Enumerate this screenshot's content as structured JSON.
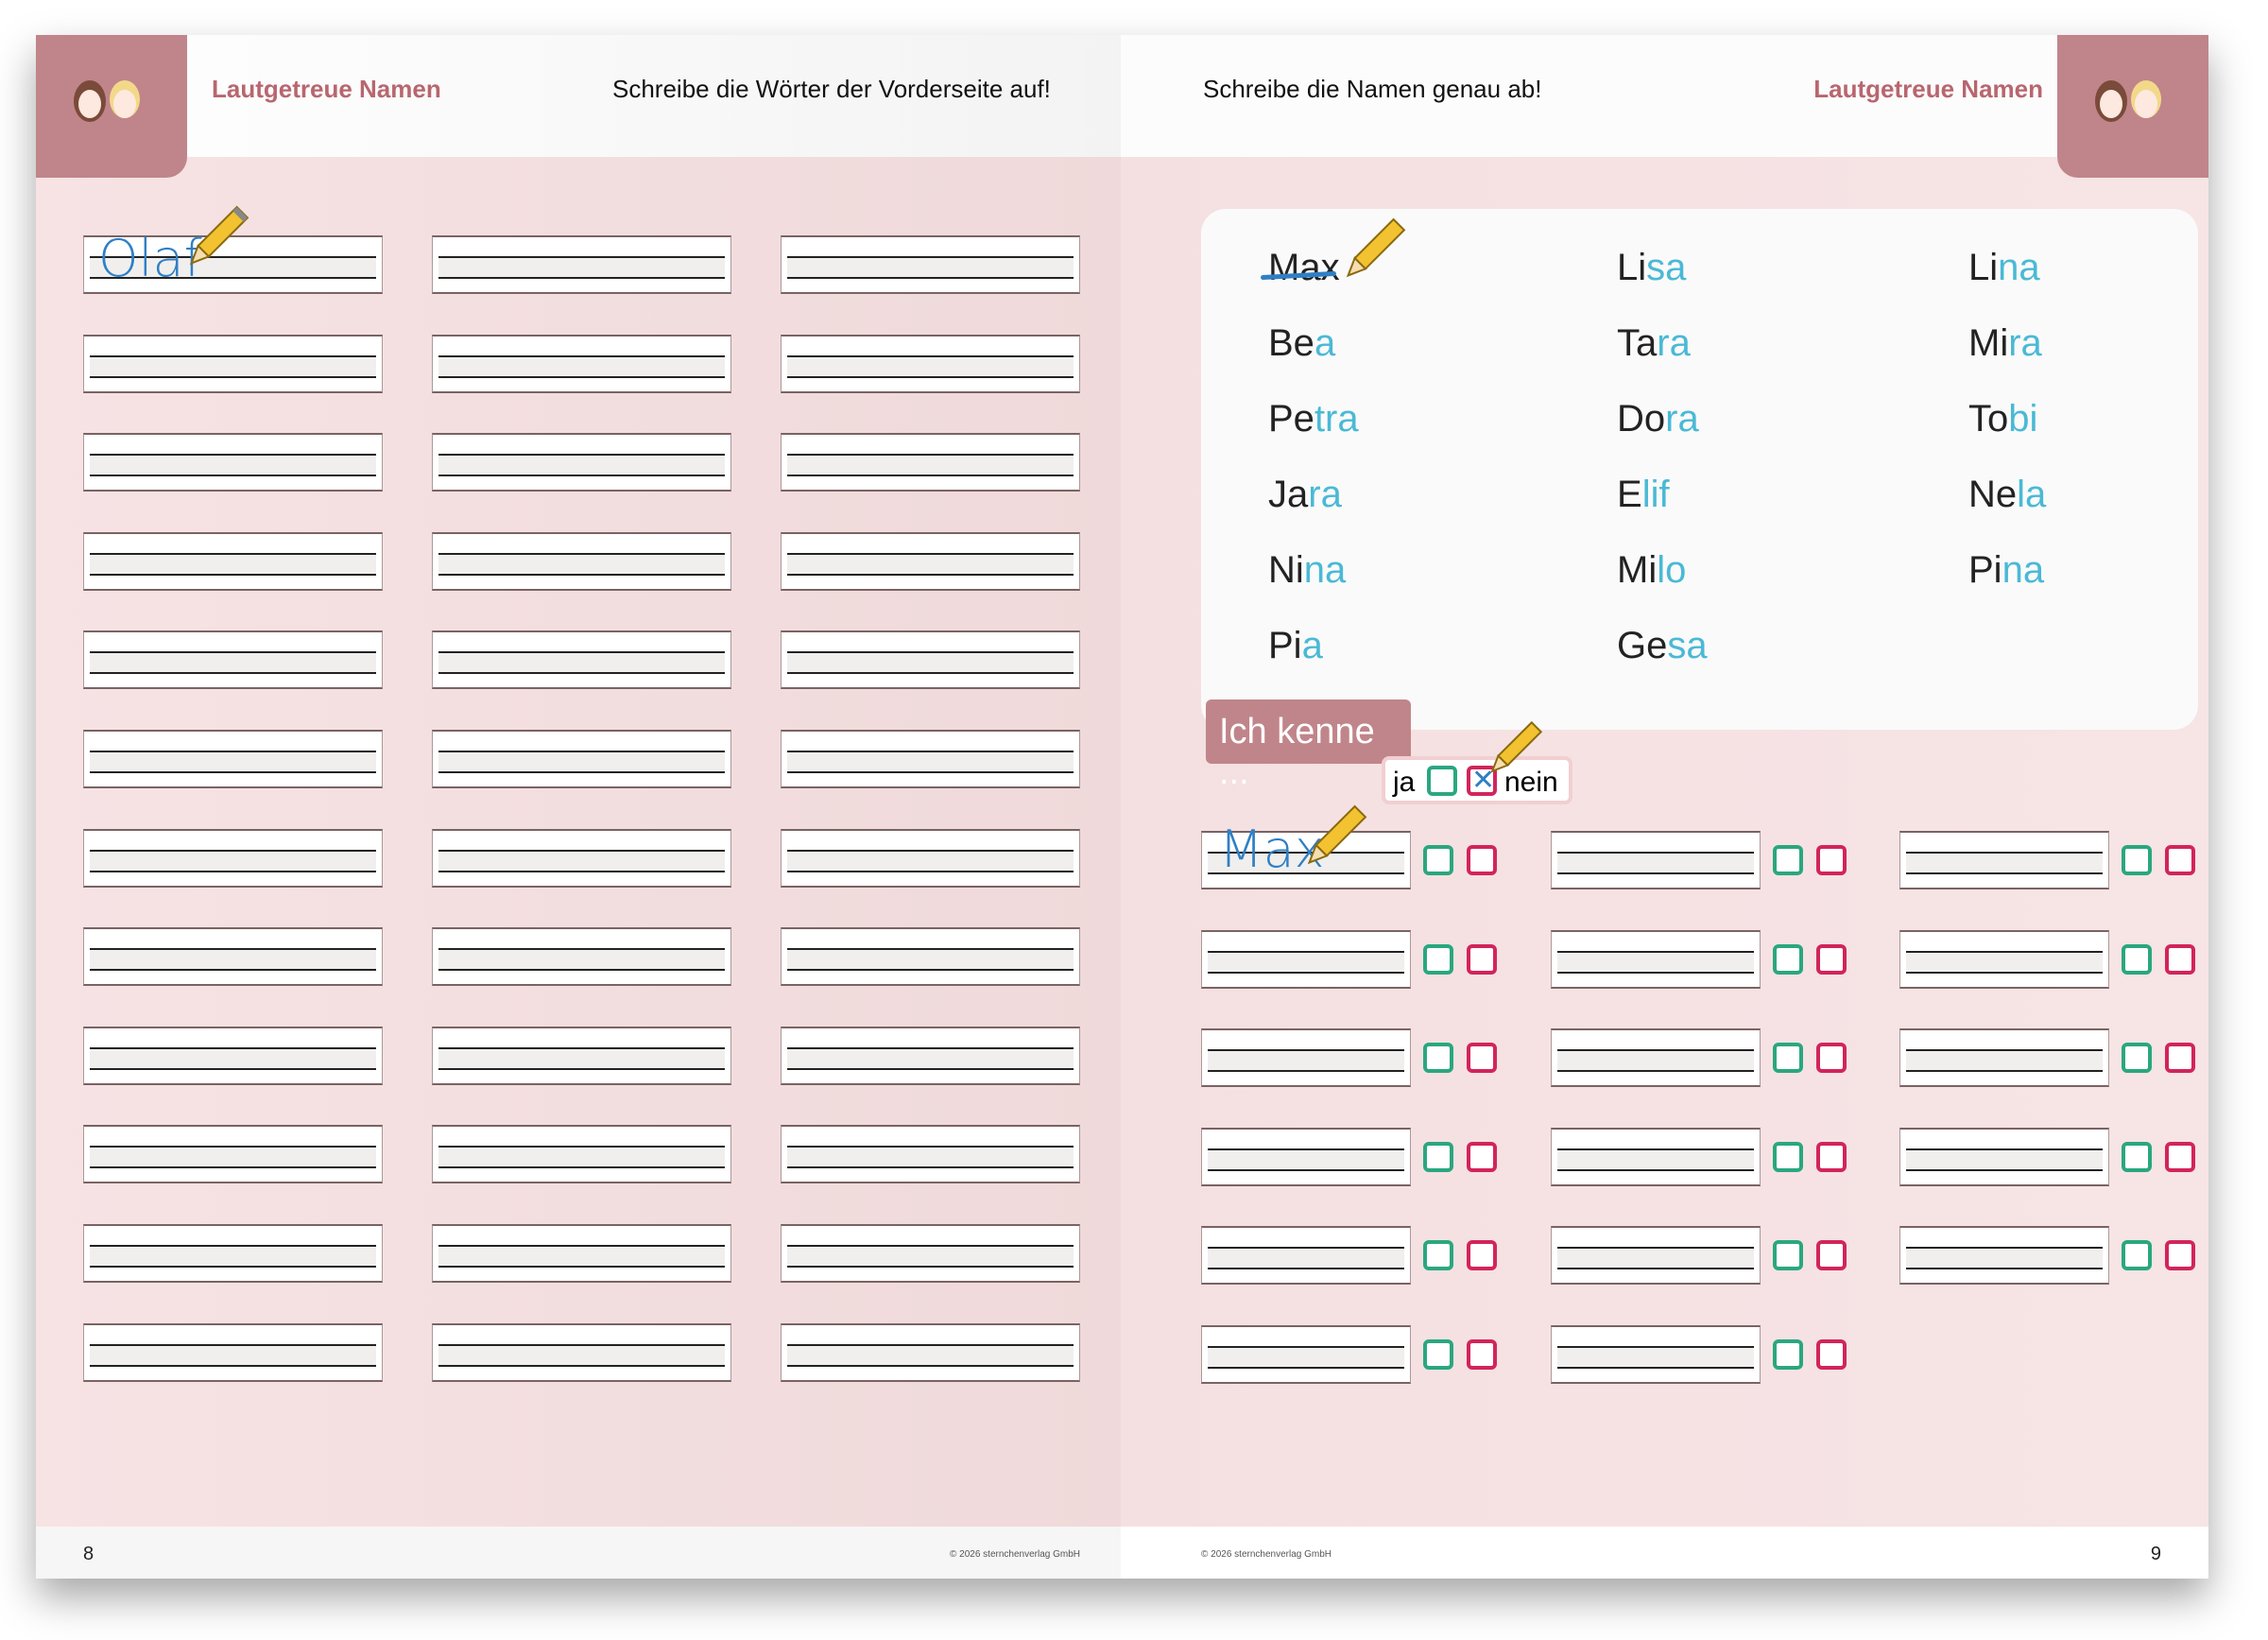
{
  "left_page": {
    "title": "Lautgetreue Namen",
    "instruction": "Schreibe die Wörter der Vorderseite auf!",
    "example_word": "Olaf",
    "line_rows": 12,
    "line_columns": 3,
    "page_number": "8",
    "copyright": "© 2026 sternchenverlag GmbH"
  },
  "right_page": {
    "title": "Lautgetreue Namen",
    "instruction": "Schreibe die Namen genau ab!",
    "names": [
      {
        "a": "Max",
        "b": "",
        "crossed": true
      },
      {
        "a": "Li",
        "b": "sa"
      },
      {
        "a": "Li",
        "b": "na"
      },
      {
        "a": "Be",
        "b": "a"
      },
      {
        "a": "Ta",
        "b": "ra"
      },
      {
        "a": "Mi",
        "b": "ra"
      },
      {
        "a": "Pe",
        "b": "tra"
      },
      {
        "a": "Do",
        "b": "ra"
      },
      {
        "a": "To",
        "b": "bi"
      },
      {
        "a": "Ja",
        "b": "ra"
      },
      {
        "a": "E",
        "b": "lif"
      },
      {
        "a": "Ne",
        "b": "la"
      },
      {
        "a": "Ni",
        "b": "na"
      },
      {
        "a": "Mi",
        "b": "lo"
      },
      {
        "a": "Pi",
        "b": "na"
      },
      {
        "a": "Pi",
        "b": "a"
      },
      {
        "a": "Ge",
        "b": "sa"
      }
    ],
    "ich_kenne": "Ich kenne ...",
    "ja": "ja",
    "nein": "nein",
    "example_word": "Max",
    "answer_rows_per_column": [
      6,
      6,
      5
    ],
    "page_number": "9",
    "copyright": "© 2026 sternchenverlag GmbH"
  },
  "colors": {
    "accent": "#c0858a",
    "title": "#b8666f",
    "name_suffix": "#4ab9d6",
    "handwriting": "#2f7fc5",
    "yes_box": "#2aa77f",
    "no_box": "#d2245b"
  }
}
